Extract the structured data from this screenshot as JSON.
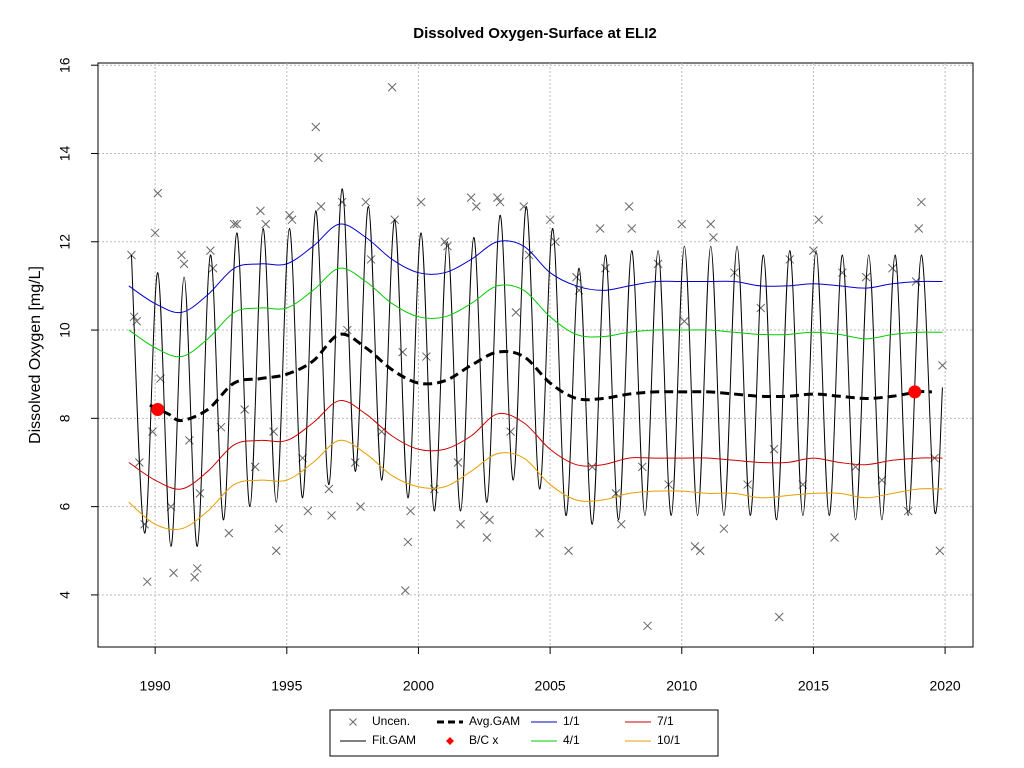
{
  "chart_data": {
    "type": "line",
    "title": "Dissolved Oxygen-Surface at ELI2",
    "y_label": "Dissolved Oxygen [mg/L]",
    "xlim": [
      1987.83,
      2021.06
    ],
    "ylim": [
      2.82,
      16.05
    ],
    "xticks": [
      1990,
      1995,
      2000,
      2005,
      2010,
      2015,
      2020
    ],
    "yticks": [
      4,
      6,
      8,
      10,
      12,
      14,
      16
    ],
    "grid": true,
    "legend": "bottom",
    "series": [
      {
        "name": "Uncen.",
        "type": "scatter",
        "color": "#666666",
        "x": [
          1989.1,
          1989.2,
          1989.3,
          1989.4,
          1989.6,
          1989.7,
          1989.9,
          1990.0,
          1990.1,
          1990.2,
          1990.6,
          1990.7,
          1991.0,
          1991.1,
          1991.3,
          1991.5,
          1991.6,
          1991.7,
          1992.1,
          1992.2,
          1992.5,
          1992.8,
          1993.0,
          1993.1,
          1993.4,
          1993.8,
          1994.0,
          1994.2,
          1994.5,
          1994.6,
          1994.7,
          1995.1,
          1995.2,
          1995.6,
          1995.8,
          1996.1,
          1996.2,
          1996.3,
          1996.6,
          1996.7,
          1997.1,
          1997.3,
          1997.6,
          1997.8,
          1998.0,
          1998.2,
          1998.6,
          1999.0,
          1999.1,
          1999.4,
          1999.5,
          1999.6,
          1999.7,
          2000.1,
          2000.3,
          2000.6,
          2001.0,
          2001.1,
          2001.5,
          2001.6,
          2002.0,
          2002.2,
          2002.5,
          2002.6,
          2002.7,
          2003.0,
          2003.1,
          2003.5,
          2003.7,
          2004.0,
          2004.2,
          2004.6,
          2005.0,
          2005.2,
          2005.7,
          2006.0,
          2006.1,
          2006.6,
          2006.9,
          2007.1,
          2007.5,
          2007.7,
          2008.0,
          2008.1,
          2008.5,
          2008.7,
          2009.1,
          2009.5,
          2010.0,
          2010.1,
          2010.5,
          2010.7,
          2011.1,
          2011.2,
          2011.6,
          2012.0,
          2012.5,
          2013.0,
          2013.5,
          2013.7,
          2014.1,
          2014.6,
          2015.0,
          2015.2,
          2015.8,
          2016.1,
          2016.6,
          2017.0,
          2017.6,
          2018.0,
          2018.6,
          2018.9,
          2019.0,
          2019.1,
          2019.6,
          2019.8,
          2019.9
        ],
        "values": [
          11.7,
          10.3,
          10.2,
          7.0,
          5.6,
          4.3,
          7.7,
          12.2,
          13.1,
          8.9,
          6.0,
          4.5,
          11.7,
          11.5,
          7.5,
          4.4,
          4.6,
          6.3,
          11.8,
          11.4,
          7.8,
          5.4,
          12.4,
          12.4,
          8.2,
          6.9,
          12.7,
          12.4,
          7.7,
          5.0,
          5.5,
          12.6,
          12.5,
          7.1,
          5.9,
          14.6,
          13.9,
          12.8,
          6.4,
          5.8,
          12.9,
          10.0,
          7.0,
          6.0,
          12.9,
          11.6,
          7.7,
          15.5,
          12.5,
          9.5,
          4.1,
          5.2,
          5.9,
          12.9,
          9.4,
          6.4,
          12.0,
          11.9,
          7.0,
          5.6,
          13.0,
          12.8,
          5.8,
          5.3,
          5.7,
          13.0,
          12.9,
          7.7,
          10.4,
          12.8,
          11.7,
          5.4,
          12.5,
          12.0,
          5.0,
          11.2,
          10.9,
          6.9,
          12.3,
          11.4,
          6.3,
          5.6,
          12.8,
          12.3,
          6.9,
          3.3,
          11.5,
          6.5,
          12.4,
          10.2,
          5.1,
          5.0,
          12.4,
          12.1,
          5.5,
          11.3,
          6.5,
          10.5,
          7.3,
          3.5,
          11.6,
          6.5,
          11.8,
          12.5,
          5.3,
          11.3,
          6.9,
          11.2,
          6.6,
          11.4,
          5.9,
          11.1,
          12.3,
          12.9,
          7.1,
          5.0,
          9.2
        ]
      },
      {
        "name": "Fit.GAM",
        "type": "line",
        "color": "#000000",
        "x": [
          1989.1,
          1989.6,
          1990.1,
          1990.6,
          1991.1,
          1991.6,
          1992.1,
          1992.6,
          1993.1,
          1993.6,
          1994.1,
          1994.6,
          1995.1,
          1995.6,
          1996.1,
          1996.6,
          1997.1,
          1997.6,
          1998.1,
          1998.6,
          1999.1,
          1999.6,
          2000.1,
          2000.6,
          2001.1,
          2001.6,
          2002.1,
          2002.6,
          2003.1,
          2003.6,
          2004.1,
          2004.6,
          2005.1,
          2005.6,
          2006.1,
          2006.6,
          2007.1,
          2007.6,
          2008.1,
          2008.6,
          2009.1,
          2009.6,
          2010.1,
          2010.6,
          2011.1,
          2011.6,
          2012.1,
          2012.6,
          2013.1,
          2013.6,
          2014.1,
          2014.6,
          2015.1,
          2015.6,
          2016.1,
          2016.6,
          2017.1,
          2017.6,
          2018.1,
          2018.6,
          2019.1,
          2019.6,
          2019.9
        ],
        "values": [
          11.7,
          5.4,
          11.3,
          5.1,
          11.2,
          5.1,
          11.7,
          5.7,
          12.2,
          6.0,
          12.3,
          6.1,
          12.3,
          6.2,
          12.7,
          6.5,
          13.2,
          6.8,
          12.8,
          6.6,
          12.5,
          6.2,
          12.2,
          5.9,
          12.0,
          5.9,
          12.1,
          6.1,
          12.6,
          6.6,
          12.8,
          6.4,
          12.3,
          5.8,
          11.4,
          5.6,
          11.7,
          5.7,
          11.8,
          5.8,
          11.8,
          5.8,
          11.9,
          5.8,
          11.9,
          5.8,
          11.9,
          5.8,
          11.7,
          5.7,
          11.8,
          5.8,
          11.8,
          5.8,
          11.7,
          5.7,
          11.7,
          5.7,
          11.7,
          5.8,
          11.7,
          5.9,
          8.7
        ]
      },
      {
        "name": "Avg.GAM",
        "type": "line",
        "dashed": true,
        "color": "#000000",
        "x": [
          1989.8,
          1990.5,
          1991,
          1992,
          1993,
          1994,
          1995,
          1996,
          1997,
          1998,
          1999,
          2000,
          2001,
          2002,
          2003,
          2004,
          2005,
          2006,
          2007,
          2008,
          2009,
          2010,
          2011,
          2012,
          2013,
          2014,
          2015,
          2016,
          2017,
          2018,
          2019,
          2019.5
        ],
        "values": [
          8.3,
          8.1,
          7.95,
          8.2,
          8.8,
          8.9,
          9.0,
          9.3,
          9.9,
          9.6,
          9.1,
          8.8,
          8.85,
          9.2,
          9.5,
          9.4,
          8.8,
          8.45,
          8.45,
          8.55,
          8.6,
          8.6,
          8.6,
          8.55,
          8.5,
          8.5,
          8.55,
          8.5,
          8.45,
          8.5,
          8.6,
          8.6
        ]
      },
      {
        "name": "B/C x",
        "type": "points",
        "color": "#ff0000",
        "x": [
          1990.1,
          2018.85
        ],
        "values": [
          8.2,
          8.6
        ]
      },
      {
        "name": "1/1",
        "type": "line",
        "color": "#0000cd",
        "x": [
          1989,
          1990,
          1991,
          1992,
          1993,
          1994,
          1995,
          1996,
          1997,
          1998,
          1999,
          2000,
          2001,
          2002,
          2003,
          2004,
          2005,
          2006,
          2007,
          2008,
          2009,
          2010,
          2011,
          2012,
          2013,
          2014,
          2015,
          2016,
          2017,
          2018,
          2019,
          2019.9
        ],
        "values": [
          11.0,
          10.6,
          10.4,
          10.8,
          11.4,
          11.5,
          11.5,
          11.9,
          12.4,
          12.1,
          11.6,
          11.3,
          11.3,
          11.6,
          12.0,
          11.9,
          11.3,
          11.0,
          10.9,
          11.0,
          11.1,
          11.1,
          11.1,
          11.1,
          11.0,
          11.0,
          11.05,
          11.0,
          10.95,
          11.05,
          11.1,
          11.1
        ]
      },
      {
        "name": "4/1",
        "type": "line",
        "color": "#00cd00",
        "x": [
          1989,
          1990,
          1991,
          1992,
          1993,
          1994,
          1995,
          1996,
          1997,
          1998,
          1999,
          2000,
          2001,
          2002,
          2003,
          2004,
          2005,
          2006,
          2007,
          2008,
          2009,
          2010,
          2011,
          2012,
          2013,
          2014,
          2015,
          2016,
          2017,
          2018,
          2019,
          2019.9
        ],
        "values": [
          10.0,
          9.6,
          9.4,
          9.8,
          10.4,
          10.5,
          10.5,
          10.9,
          11.4,
          11.1,
          10.6,
          10.3,
          10.3,
          10.6,
          11.0,
          10.9,
          10.3,
          9.9,
          9.85,
          9.95,
          10.0,
          10.0,
          10.0,
          9.95,
          9.9,
          9.9,
          9.95,
          9.9,
          9.8,
          9.9,
          9.95,
          9.95
        ]
      },
      {
        "name": "7/1",
        "type": "line",
        "color": "#cd0000",
        "x": [
          1989,
          1990,
          1991,
          1992,
          1993,
          1994,
          1995,
          1996,
          1997,
          1998,
          1999,
          2000,
          2001,
          2002,
          2003,
          2004,
          2005,
          2006,
          2007,
          2008,
          2009,
          2010,
          2011,
          2012,
          2013,
          2014,
          2015,
          2016,
          2017,
          2018,
          2019,
          2019.9
        ],
        "values": [
          7.0,
          6.6,
          6.4,
          6.8,
          7.4,
          7.5,
          7.5,
          7.9,
          8.4,
          8.1,
          7.6,
          7.3,
          7.3,
          7.6,
          8.1,
          7.9,
          7.3,
          6.95,
          6.95,
          7.1,
          7.1,
          7.1,
          7.1,
          7.05,
          7.0,
          7.0,
          7.1,
          7.0,
          6.95,
          7.05,
          7.1,
          7.1
        ]
      },
      {
        "name": "10/1",
        "type": "line",
        "color": "#e69f00",
        "x": [
          1989,
          1990,
          1991,
          1992,
          1993,
          1994,
          1995,
          1996,
          1997,
          1998,
          1999,
          2000,
          2001,
          2002,
          2003,
          2004,
          2005,
          2006,
          2007,
          2008,
          2009,
          2010,
          2011,
          2012,
          2013,
          2014,
          2015,
          2016,
          2017,
          2018,
          2019,
          2019.9
        ],
        "values": [
          6.1,
          5.6,
          5.5,
          5.9,
          6.5,
          6.6,
          6.6,
          7.0,
          7.5,
          7.2,
          6.7,
          6.45,
          6.45,
          6.8,
          7.2,
          7.1,
          6.5,
          6.15,
          6.15,
          6.3,
          6.35,
          6.35,
          6.3,
          6.3,
          6.2,
          6.25,
          6.3,
          6.3,
          6.2,
          6.3,
          6.4,
          6.4
        ]
      }
    ]
  }
}
